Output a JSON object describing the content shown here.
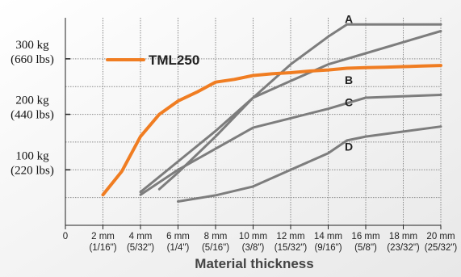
{
  "chart_data": {
    "type": "line",
    "title": "",
    "xlabel": "Material thickness",
    "ylabel": "",
    "xlim": [
      0,
      20
    ],
    "ylim": [
      0,
      350
    ],
    "grid": true,
    "legend": "top-left",
    "x_ticks": [
      {
        "x": 0,
        "mm": "0",
        "inch": ""
      },
      {
        "x": 2,
        "mm": "2 mm",
        "inch": "(1/16\")"
      },
      {
        "x": 4,
        "mm": "4 mm",
        "inch": "(5/32\")"
      },
      {
        "x": 6,
        "mm": "6 mm",
        "inch": "(1/4\")"
      },
      {
        "x": 8,
        "mm": "8 mm",
        "inch": "(5/16\")"
      },
      {
        "x": 10,
        "mm": "10 mm",
        "inch": "(3/8\")"
      },
      {
        "x": 12,
        "mm": "12 mm",
        "inch": "(15/32\")"
      },
      {
        "x": 14,
        "mm": "14 mm",
        "inch": "(9/16\")"
      },
      {
        "x": 16,
        "mm": "16 mm",
        "inch": "(5/8\")"
      },
      {
        "x": 18,
        "mm": "18 mm",
        "inch": "(23/32\")"
      },
      {
        "x": 20,
        "mm": "20 mm",
        "inch": "(25/32\")"
      }
    ],
    "y_ticks": [
      {
        "y": 100,
        "kg": "100 kg",
        "lbs": "(220 lbs)"
      },
      {
        "y": 200,
        "kg": "200 kg",
        "lbs": "(440 lbs)"
      },
      {
        "y": 300,
        "kg": "300 kg",
        "lbs": "(660 lbs)"
      }
    ],
    "y_gridlines": [
      50,
      100,
      150,
      200,
      250,
      300
    ],
    "colors": {
      "primary": "#f07d22",
      "others": "#7d7d7d",
      "grid": "#8a8a8a"
    },
    "series": [
      {
        "name": "TML250",
        "color": "#f07d22",
        "x": [
          2,
          3,
          4,
          5,
          6,
          7,
          8,
          9,
          10,
          11,
          12,
          13,
          14,
          15,
          16,
          17,
          18,
          19,
          20
        ],
        "y": [
          55,
          97,
          160,
          200,
          224,
          240,
          258,
          263,
          270,
          273,
          275,
          278,
          280,
          283,
          284,
          285,
          286,
          287,
          288
        ]
      },
      {
        "name": "A",
        "color": "#7d7d7d",
        "x": [
          4,
          6,
          8,
          10,
          12,
          14,
          15,
          20
        ],
        "y": [
          60,
          115,
          170,
          230,
          290,
          340,
          362,
          362
        ]
      },
      {
        "name": "B",
        "color": "#7d7d7d",
        "x": [
          5,
          6,
          8,
          10,
          12,
          14,
          16,
          20
        ],
        "y": [
          65,
          95,
          160,
          230,
          260,
          290,
          310,
          350
        ]
      },
      {
        "name": "C",
        "color": "#7d7d7d",
        "x": [
          4,
          6,
          8,
          10,
          12,
          14,
          16,
          20
        ],
        "y": [
          55,
          100,
          138,
          176,
          193,
          210,
          230,
          235
        ]
      },
      {
        "name": "D",
        "color": "#7d7d7d",
        "x": [
          6,
          8,
          10,
          12,
          14,
          15,
          16,
          20
        ],
        "y": [
          43,
          54,
          70,
          100,
          130,
          153,
          160,
          178
        ]
      }
    ],
    "series_labels": [
      {
        "name": "A",
        "x": 15.1,
        "y": 372
      },
      {
        "name": "B",
        "x": 15.1,
        "y": 262
      },
      {
        "name": "C",
        "x": 15.1,
        "y": 222
      },
      {
        "name": "D",
        "x": 15.1,
        "y": 142
      }
    ]
  }
}
